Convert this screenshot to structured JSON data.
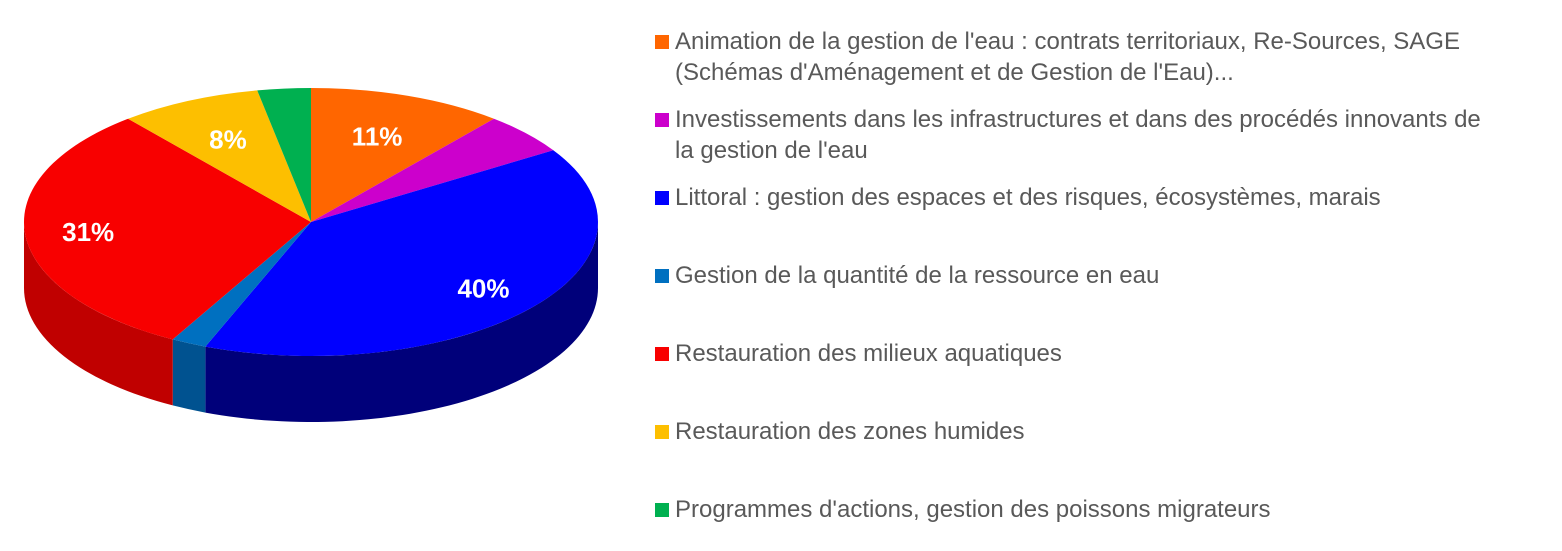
{
  "chart_data": {
    "type": "pie",
    "style": "3d",
    "legend_position": "right",
    "slices": [
      {
        "name": "Animation de la gestion de l'eau : contrats territoriaux, Re-Sources, SAGE (Schémas d'Aménagement et de Gestion de l'Eau)...",
        "value": 11,
        "label": "11%",
        "color": "#ff6600",
        "side": "#c44e00"
      },
      {
        "name": "Investissements dans les infrastructures et dans des procédés innovants de la gestion de l'eau",
        "value": 5,
        "label": "",
        "color": "#cc00cc",
        "side": "#990099"
      },
      {
        "name": "Littoral : gestion des espaces et des risques, écosystèmes, marais",
        "value": 40,
        "label": "40%",
        "color": "#0000ff",
        "side": "#00007a"
      },
      {
        "name": "Gestion de la quantité de la ressource en eau",
        "value": 2,
        "label": "",
        "color": "#0070c0",
        "side": "#005290"
      },
      {
        "name": "Restauration des milieux aquatiques",
        "value": 31,
        "label": "31%",
        "color": "#f80000",
        "side": "#c00000"
      },
      {
        "name": "Restauration des zones humides",
        "value": 8,
        "label": "8%",
        "color": "#fdbf00",
        "side": "#c09000"
      },
      {
        "name": "Programmes d'actions, gestion des poissons migrateurs",
        "value": 3,
        "label": "",
        "color": "#00b050",
        "side": "#008038"
      }
    ]
  }
}
